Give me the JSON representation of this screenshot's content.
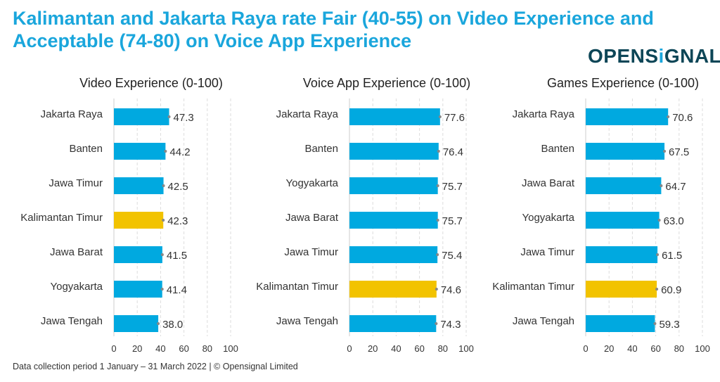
{
  "title": "Kalimantan and Jakarta Raya rate Fair (40-55) on Video Experience and Acceptable (74-80) on Voice App Experience",
  "logo": {
    "before": "OPENS",
    "i": "i",
    "after": "GNAL",
    "text": "OPENSIGNAL"
  },
  "footer": "Data collection period 1 January – 31 March 2022  |  © Opensignal Limited",
  "colors": {
    "bar": "#00a9e0",
    "highlight": "#f2c300",
    "title": "#1aa6dc",
    "logo": "#0d4657"
  },
  "chart_data": [
    {
      "type": "bar",
      "orientation": "horizontal",
      "title": "Video Experience (0-100)",
      "xlim": [
        0,
        100
      ],
      "xticks": [
        0,
        20,
        40,
        60,
        80,
        100
      ],
      "grid": true,
      "highlight": "Kalimantan Timur",
      "categories": [
        "Jakarta Raya",
        "Banten",
        "Jawa Timur",
        "Kalimantan Timur",
        "Jawa Barat",
        "Yogyakarta",
        "Jawa Tengah"
      ],
      "values": [
        47.3,
        44.2,
        42.5,
        42.3,
        41.5,
        41.4,
        38.0
      ]
    },
    {
      "type": "bar",
      "orientation": "horizontal",
      "title": "Voice App Experience (0-100)",
      "xlim": [
        0,
        100
      ],
      "xticks": [
        0,
        20,
        40,
        60,
        80,
        100
      ],
      "grid": true,
      "highlight": "Kalimantan Timur",
      "categories": [
        "Jakarta Raya",
        "Banten",
        "Yogyakarta",
        "Jawa Barat",
        "Jawa Timur",
        "Kalimantan Timur",
        "Jawa Tengah"
      ],
      "values": [
        77.6,
        76.4,
        75.7,
        75.7,
        75.4,
        74.6,
        74.3
      ]
    },
    {
      "type": "bar",
      "orientation": "horizontal",
      "title": "Games Experience (0-100)",
      "xlim": [
        0,
        100
      ],
      "xticks": [
        0,
        20,
        40,
        60,
        80,
        100
      ],
      "grid": true,
      "highlight": "Kalimantan Timur",
      "categories": [
        "Jakarta Raya",
        "Banten",
        "Jawa Barat",
        "Yogyakarta",
        "Jawa Timur",
        "Kalimantan Timur",
        "Jawa Tengah"
      ],
      "values": [
        70.6,
        67.5,
        64.7,
        63.0,
        61.5,
        60.9,
        59.3
      ]
    }
  ]
}
